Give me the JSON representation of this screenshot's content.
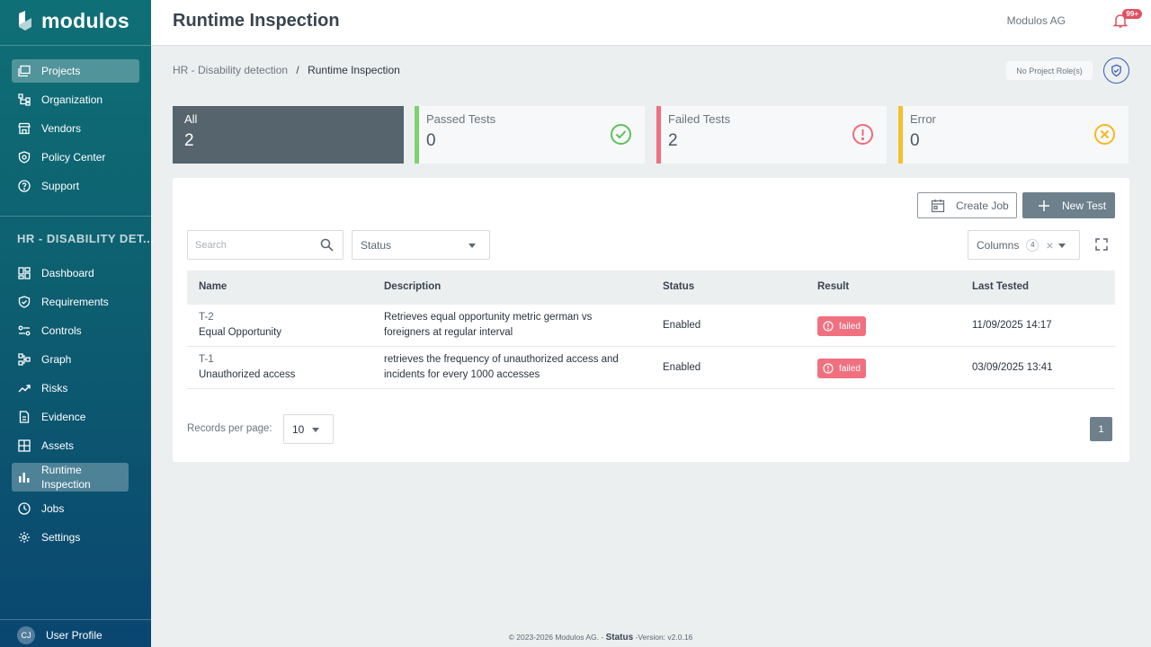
{
  "app": {
    "logo_text": "modulos"
  },
  "sidebar": {
    "top_items": [
      {
        "label": "Projects",
        "icon": "projects-icon",
        "active": true
      },
      {
        "label": "Organization",
        "icon": "organization-icon"
      },
      {
        "label": "Vendors",
        "icon": "vendors-icon"
      },
      {
        "label": "Policy Center",
        "icon": "policy-icon"
      },
      {
        "label": "Support",
        "icon": "support-icon"
      }
    ],
    "project_title": "HR - DISABILITY DET...",
    "project_items": [
      {
        "label": "Dashboard",
        "icon": "dashboard-icon"
      },
      {
        "label": "Requirements",
        "icon": "requirements-icon"
      },
      {
        "label": "Controls",
        "icon": "controls-icon"
      },
      {
        "label": "Graph",
        "icon": "graph-icon"
      },
      {
        "label": "Risks",
        "icon": "risks-icon"
      },
      {
        "label": "Evidence",
        "icon": "evidence-icon"
      },
      {
        "label": "Assets",
        "icon": "assets-icon"
      },
      {
        "label": "Runtime Inspection",
        "icon": "runtime-icon",
        "active": true
      },
      {
        "label": "Jobs",
        "icon": "jobs-icon"
      },
      {
        "label": "Settings",
        "icon": "settings-icon"
      }
    ],
    "user": {
      "initials": "CJ",
      "label": "User Profile"
    }
  },
  "header": {
    "title": "Runtime Inspection",
    "org": "Modulos AG",
    "notifications": "99+"
  },
  "breadcrumb": {
    "parent": "HR - Disability detection",
    "separator": "/",
    "current": "Runtime Inspection"
  },
  "role_chip": "No Project Role(s)",
  "stats": [
    {
      "label": "All",
      "value": "2"
    },
    {
      "label": "Passed Tests",
      "value": "0",
      "color": "#7bd36e"
    },
    {
      "label": "Failed Tests",
      "value": "2",
      "color": "#f07080"
    },
    {
      "label": "Error",
      "value": "0",
      "color": "#f5c030"
    }
  ],
  "toolbar": {
    "create_job": "Create Job",
    "new_test": "New Test",
    "search_placeholder": "Search",
    "status_filter": "Status",
    "columns_label": "Columns",
    "columns_count": "4"
  },
  "table": {
    "headers": [
      "Name",
      "Description",
      "Status",
      "Result",
      "Last Tested"
    ],
    "rows": [
      {
        "id": "T-2",
        "name": "Equal Opportunity",
        "description_1": "Retrieves equal opportunity metric german vs",
        "description_2": "foreigners at regular interval",
        "status": "Enabled",
        "result": "failed",
        "last_tested": "11/09/2025 14:17"
      },
      {
        "id": "T-1",
        "name": "Unauthorized access",
        "description_1": "retrieves the frequency of unauthorized access and",
        "description_2": "incidents for every 1000 accesses",
        "status": "Enabled",
        "result": "failed",
        "last_tested": "03/09/2025 13:41"
      }
    ]
  },
  "pagination": {
    "records_label": "Records per page:",
    "per_page": "10",
    "current_page": "1"
  },
  "footer": {
    "copyright": "© 2023-2026 Modulos AG. -",
    "status": "Status",
    "version": "-Version: v2.0.16"
  }
}
